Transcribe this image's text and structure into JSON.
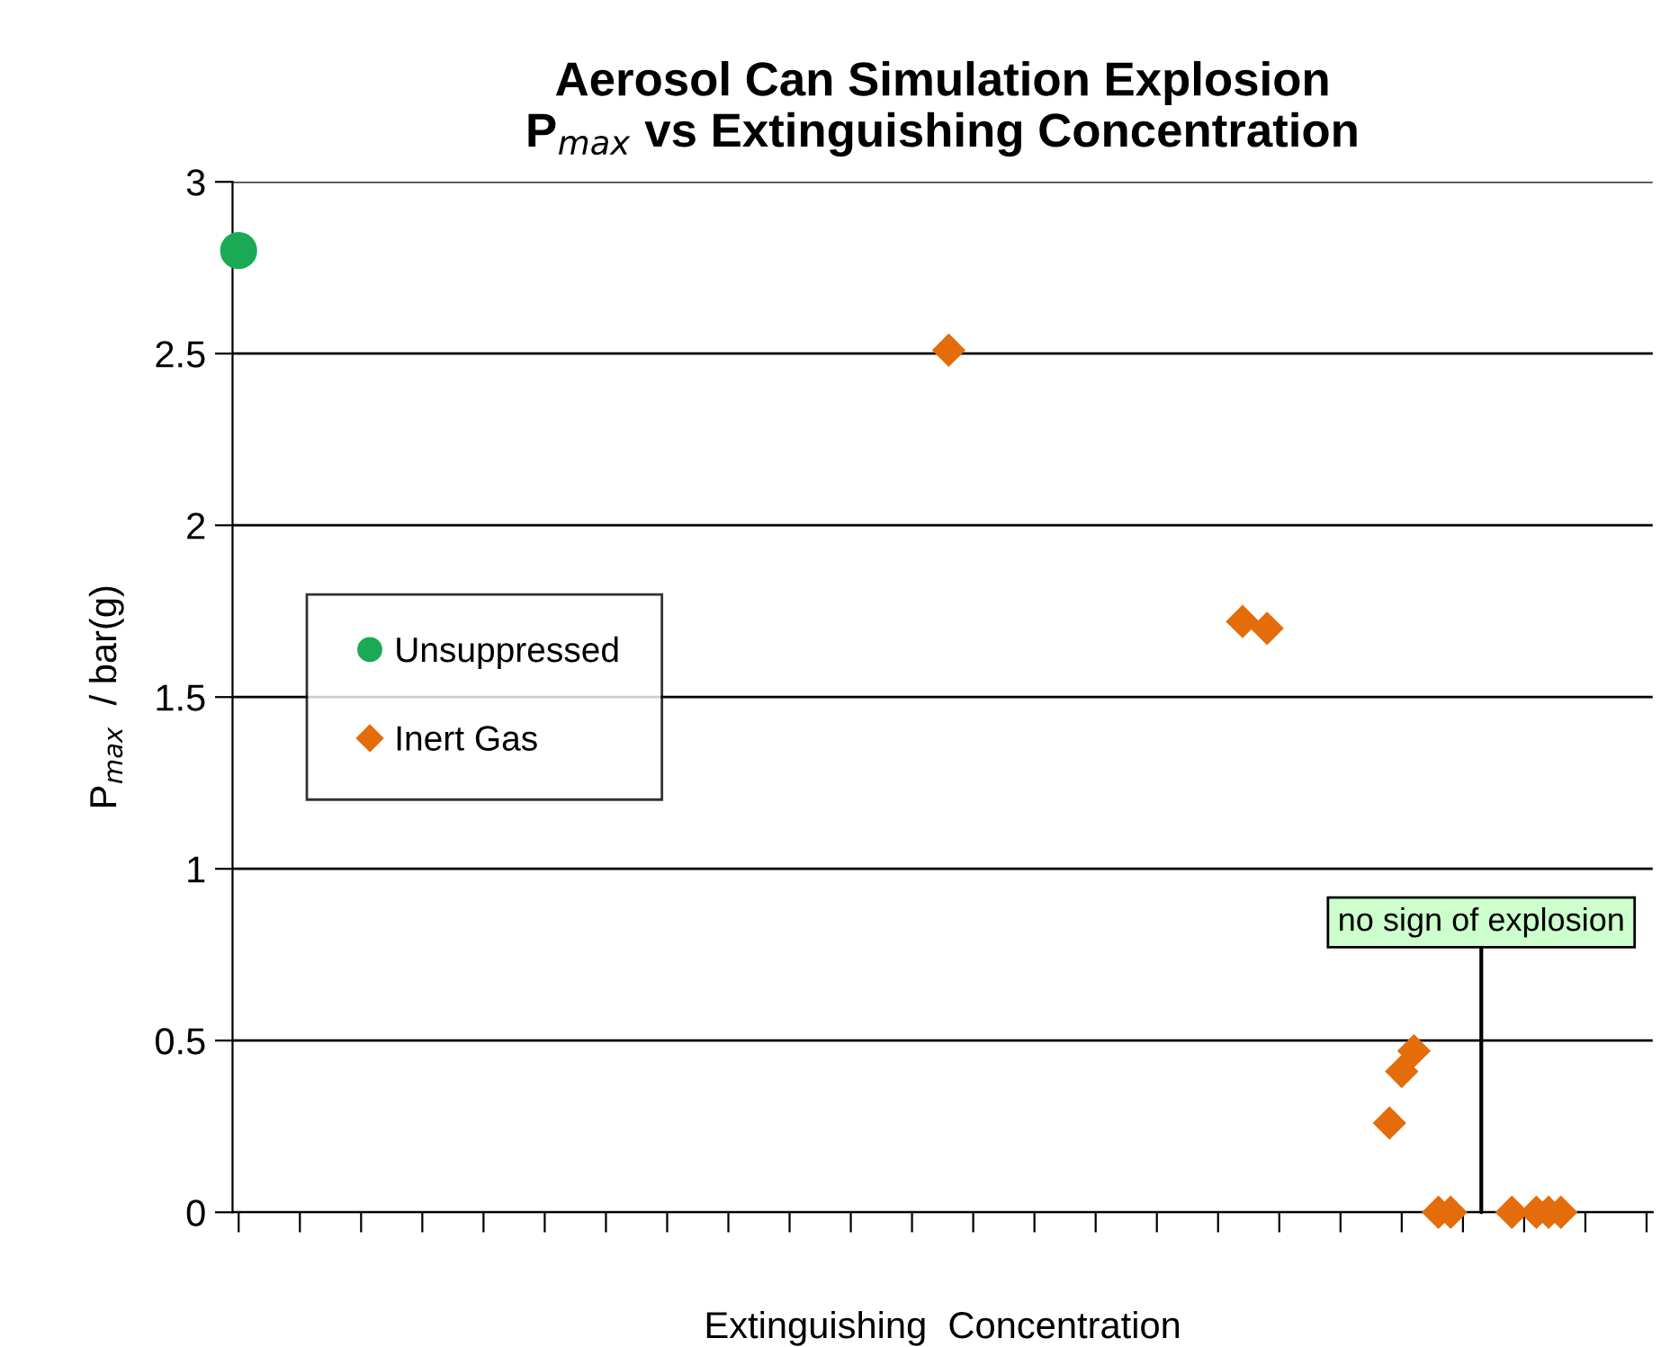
{
  "chart_data": {
    "type": "scatter",
    "title": "Aerosol Can Simulation Explosion\nP$_{max}$ vs Extinguishing Concentration",
    "xlabel": "Extinguishing  Concentration",
    "ylabel": "P$_{max}$  / bar(g)",
    "categories": [
      null,
      null,
      null,
      null,
      null,
      null,
      null,
      null,
      null,
      null,
      null,
      null,
      null,
      null,
      null,
      null,
      null,
      null,
      null,
      null,
      null,
      null,
      null,
      null,
      null,
      null,
      null,
      null,
      null,
      null,
      null,
      null,
      null,
      null,
      null,
      null,
      null,
      null,
      null,
      null,
      null,
      null,
      null,
      null,
      null,
      null,
      null,
      null,
      null,
      null,
      null,
      null,
      null,
      null,
      null,
      null,
      null,
      null,
      null,
      null,
      null,
      null,
      null,
      null,
      null,
      null,
      null,
      null,
      null,
      null,
      null,
      null,
      null,
      null,
      null,
      null,
      null,
      null,
      null,
      null,
      null,
      null,
      null,
      null,
      null,
      null,
      null,
      null,
      null,
      null,
      null,
      null,
      null,
      null,
      null,
      null,
      null,
      null,
      null,
      null,
      null,
      null,
      null,
      null,
      null,
      null,
      null,
      null,
      null,
      null,
      null,
      null,
      null,
      null,
      null,
      null
    ],
    "series": [
      {
        "name": "Unsuppressed",
        "color": "#1aaa55",
        "marker": "circle",
        "values": [
          2.8,
          null,
          null,
          null,
          null,
          null,
          null,
          null,
          null,
          null,
          null,
          null,
          null,
          null,
          null,
          null,
          null,
          null,
          null,
          null,
          null,
          null,
          null,
          null,
          null,
          null,
          null,
          null,
          null,
          null,
          null,
          null,
          null,
          null,
          null,
          null,
          null,
          null,
          null,
          null,
          null,
          null,
          null,
          null,
          null,
          null,
          null,
          null,
          null,
          null,
          null,
          null,
          null,
          null,
          null,
          null,
          null,
          null,
          null,
          null,
          null,
          null,
          null,
          null,
          null,
          null,
          null,
          null,
          null,
          null,
          null,
          null,
          null,
          null,
          null,
          null,
          null,
          null,
          null,
          null,
          null,
          null,
          null,
          null,
          null,
          null,
          null,
          null,
          null,
          null,
          null,
          null,
          null,
          null,
          null,
          null,
          null,
          null,
          null,
          null,
          null,
          null,
          null,
          null,
          null,
          null,
          null,
          null,
          null,
          null,
          null,
          null,
          null,
          null,
          null,
          null
        ]
      },
      {
        "name": "Inert Gas",
        "color": "#e46c0a",
        "marker": "diamond",
        "values": [
          null,
          null,
          null,
          null,
          null,
          null,
          null,
          null,
          null,
          null,
          null,
          null,
          null,
          null,
          null,
          null,
          null,
          null,
          null,
          null,
          null,
          null,
          null,
          null,
          null,
          null,
          null,
          null,
          null,
          null,
          null,
          null,
          null,
          null,
          null,
          null,
          null,
          null,
          null,
          null,
          null,
          null,
          null,
          null,
          null,
          null,
          null,
          null,
          null,
          null,
          null,
          null,
          null,
          null,
          null,
          null,
          null,
          null,
          2.51,
          null,
          null,
          null,
          null,
          null,
          null,
          null,
          null,
          null,
          null,
          null,
          null,
          null,
          null,
          null,
          null,
          null,
          null,
          null,
          null,
          null,
          null,
          null,
          1.72,
          null,
          1.7,
          null,
          null,
          null,
          null,
          null,
          null,
          null,
          null,
          null,
          0.26,
          0.41,
          0.47,
          null,
          0,
          0,
          null,
          null,
          null,
          null,
          0,
          null,
          0,
          0,
          0,
          null,
          null,
          null,
          null,
          null,
          null,
          null
        ]
      }
    ],
    "ylim": [
      0,
      3
    ],
    "yticks": [
      0,
      0.5,
      1,
      1.5,
      2,
      2.5,
      3
    ],
    "tick_labels": "y",
    "grid": "y",
    "legend": "center left",
    "annotations": [
      "no sign of explosion"
    ]
  }
}
